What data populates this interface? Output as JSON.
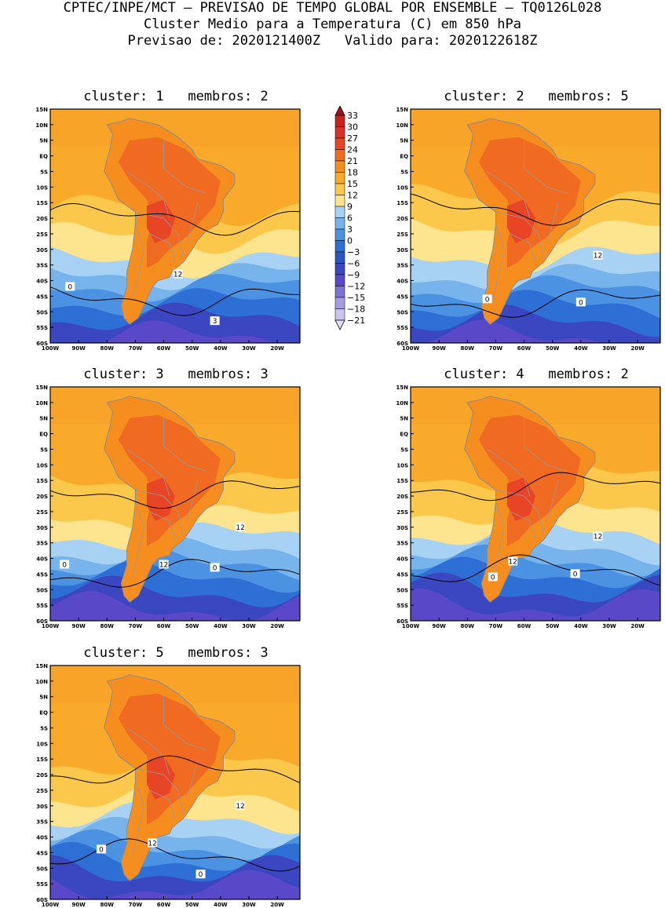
{
  "header": {
    "line1": "CPTEC/INPE/MCT — PREVISAO DE TEMPO GLOBAL POR ENSEMBLE — TQ0126L028",
    "line2": "Cluster Medio para a Temperatura (C) em 850 hPa",
    "line3": "Previsao de: 2020121400Z   Valido para: 2020122618Z"
  },
  "lat_labels": [
    "15N",
    "10N",
    "5N",
    "EQ",
    "5S",
    "10S",
    "15S",
    "20S",
    "25S",
    "30S",
    "35S",
    "40S",
    "45S",
    "50S",
    "55S",
    "60S"
  ],
  "lon_labels": [
    "100W",
    "90W",
    "80W",
    "70W",
    "60W",
    "50W",
    "40W",
    "30W",
    "20W"
  ],
  "colorbar": {
    "labels": [
      "33",
      "30",
      "27",
      "24",
      "21",
      "18",
      "15",
      "12",
      "9",
      "6",
      "3",
      "0",
      "−3",
      "−6",
      "−9",
      "−12",
      "−15",
      "−18",
      "−21"
    ],
    "colors": [
      "#a50f15",
      "#c4221b",
      "#d8302a",
      "#e84526",
      "#f06a22",
      "#f58e1f",
      "#f9aa2a",
      "#fbc84c",
      "#fde48e",
      "#a8d2f3",
      "#78b4ec",
      "#4b92e3",
      "#2e6fd6",
      "#2857c4",
      "#3b46c1",
      "#5949c9",
      "#7d72d6",
      "#a59de3",
      "#c9c3ee",
      "#e2def6"
    ]
  },
  "panels": [
    {
      "title": "cluster: 1   membros: 2",
      "contour_labels": [
        "0",
        "12",
        "3"
      ]
    },
    {
      "title": "cluster: 2   membros: 5",
      "contour_labels": [
        "12",
        "0",
        "0"
      ]
    },
    {
      "title": "cluster: 3   membros: 3",
      "contour_labels": [
        "12",
        "12",
        "0",
        "0"
      ]
    },
    {
      "title": "cluster: 4   membros: 2",
      "contour_labels": [
        "12",
        "12",
        "0",
        "0"
      ]
    },
    {
      "title": "cluster: 5   membros: 3",
      "contour_labels": [
        "12",
        "12",
        "0",
        "0"
      ]
    }
  ]
}
